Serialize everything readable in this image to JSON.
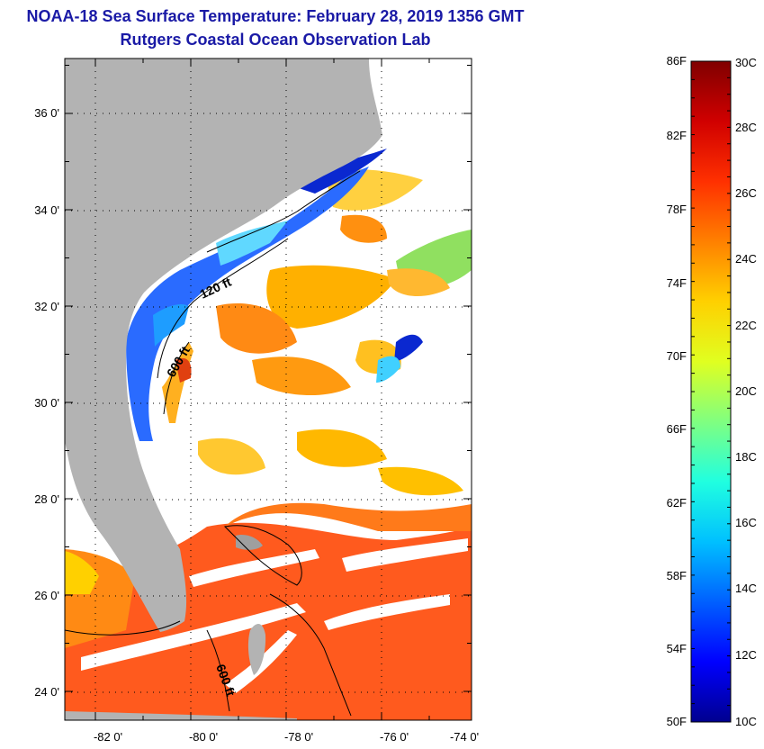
{
  "header": {
    "title_line1": "NOAA-18 Sea Surface Temperature:  February 28, 2019 1356 GMT",
    "title_line2": "Rutgers Coastal Ocean Observation Lab"
  },
  "map": {
    "longitude_labels": [
      "-82 0'",
      "-80 0'",
      "-78 0'",
      "-76 0'",
      "-74 0'"
    ],
    "latitude_labels": [
      "36 0'",
      "34 0'",
      "32 0'",
      "30 0'",
      "28 0'",
      "26 0'",
      "24 0'"
    ],
    "isobath_labels": [
      "120 ft",
      "600 ft",
      "600 ft"
    ]
  },
  "colorbar": {
    "fahrenheit_labels": [
      "86F",
      "82F",
      "78F",
      "74F",
      "70F",
      "66F",
      "62F",
      "58F",
      "54F",
      "50F"
    ],
    "celsius_labels": [
      "30C",
      "28C",
      "26C",
      "24C",
      "22C",
      "20C",
      "18C",
      "16C",
      "14C",
      "12C",
      "10C"
    ],
    "colors": [
      "#00008f",
      "#0000ff",
      "#0060ff",
      "#00c0ff",
      "#20ffe0",
      "#80ff80",
      "#e0ff20",
      "#ffd000",
      "#ff8000",
      "#ff3000",
      "#d00000",
      "#800000"
    ]
  },
  "colors": {
    "land": "#b3b3b3",
    "warm_water": "#ff5a1e",
    "title": "#1a1aa6"
  }
}
